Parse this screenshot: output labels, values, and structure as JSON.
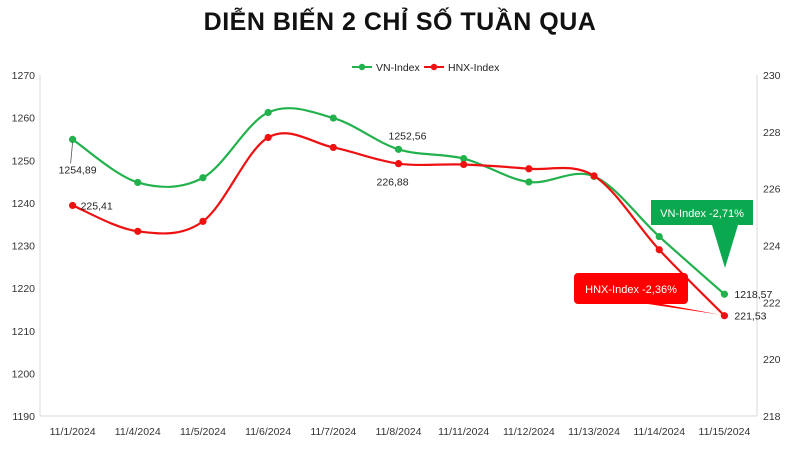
{
  "chart_data": {
    "type": "line",
    "title": "DIỄN BIẾN 2 CHỈ SỐ TUẦN QUA",
    "categories": [
      "11/1/2024",
      "11/4/2024",
      "11/5/2024",
      "11/6/2024",
      "11/7/2024",
      "11/8/2024",
      "11/11/2024",
      "11/12/2024",
      "11/13/2024",
      "11/14/2024",
      "11/15/2024"
    ],
    "series": [
      {
        "name": "VN-Index",
        "axis": "left",
        "color": "#22b14c",
        "values": [
          1254.89,
          1244.8,
          1245.9,
          1261.2,
          1259.9,
          1252.56,
          1250.4,
          1244.9,
          1246.2,
          1232.1,
          1218.57
        ]
      },
      {
        "name": "HNX-Index",
        "axis": "right",
        "color": "#ee1111",
        "values": [
          225.41,
          224.5,
          224.85,
          227.8,
          227.45,
          226.88,
          226.85,
          226.7,
          226.45,
          223.85,
          221.53
        ]
      }
    ],
    "y_left": {
      "range": [
        1190,
        1270
      ],
      "ticks": [
        "1190",
        "1200",
        "1210",
        "1220",
        "1230",
        "1240",
        "1250",
        "1260",
        "1270"
      ]
    },
    "y_right": {
      "range": [
        218,
        230
      ],
      "ticks": [
        "218",
        "220",
        "222",
        "224",
        "226",
        "228",
        "230"
      ]
    },
    "legend_position": "top-center",
    "grid": false,
    "data_labels": [
      {
        "series": 0,
        "index": 0,
        "text": "1254,89"
      },
      {
        "series": 0,
        "index": 5,
        "text": "1252,56"
      },
      {
        "series": 0,
        "index": 10,
        "text": "1218,57"
      },
      {
        "series": 1,
        "index": 0,
        "text": "225,41"
      },
      {
        "series": 1,
        "index": 5,
        "text": "226,88"
      },
      {
        "series": 1,
        "index": 10,
        "text": "221,53"
      }
    ],
    "callouts": [
      {
        "series": 0,
        "text": "VN-Index -2,71%",
        "color": "#0aa84f"
      },
      {
        "series": 1,
        "text": "HNX-Index -2,36%",
        "color": "#ff0000"
      }
    ]
  }
}
